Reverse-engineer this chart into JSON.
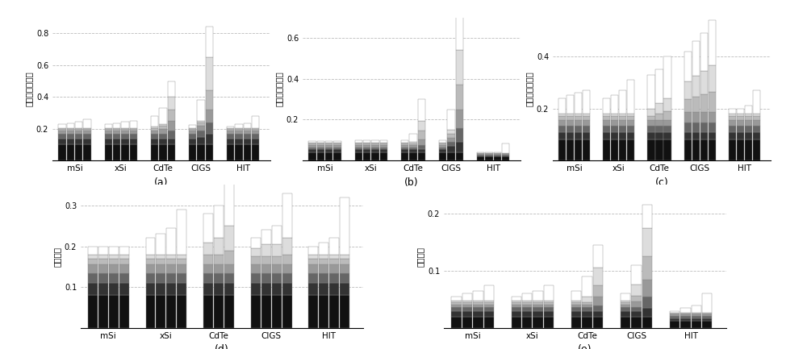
{
  "titles": {
    "a": "最大功率点电流",
    "b": "最大功率点电压",
    "c": "最大功率点功率",
    "d": "短路电流",
    "e": "开路电压"
  },
  "xlabels": [
    "mSi",
    "xSi",
    "CdTe",
    "CIGS",
    "HIT"
  ],
  "colors": [
    "#111111",
    "#333333",
    "#666666",
    "#999999",
    "#bbbbbb",
    "#dddddd",
    "#ffffff"
  ],
  "chart_a": {
    "ylim": [
      0,
      0.9
    ],
    "yticks": [
      0.2,
      0.4,
      0.6,
      0.8
    ],
    "data": [
      [
        0.21,
        0.22,
        0.23,
        0.25
      ],
      [
        0.21,
        0.22,
        0.23,
        0.24
      ],
      [
        0.27,
        0.33,
        0.53
      ],
      [
        0.26,
        0.39,
        0.84
      ],
      [
        0.2,
        0.21,
        0.22,
        0.28
      ]
    ],
    "segment_fracs": [
      [
        [
          0.1,
          0.04,
          0.03,
          0.02,
          0.01,
          0.005,
          0.025
        ],
        [
          0.1,
          0.04,
          0.03,
          0.02,
          0.01,
          0.005,
          0.03
        ],
        [
          0.1,
          0.04,
          0.03,
          0.02,
          0.01,
          0.005,
          0.04
        ],
        [
          0.1,
          0.04,
          0.03,
          0.02,
          0.01,
          0.005,
          0.055
        ]
      ],
      [
        [
          0.1,
          0.04,
          0.03,
          0.02,
          0.01,
          0.005,
          0.025
        ],
        [
          0.1,
          0.04,
          0.03,
          0.02,
          0.01,
          0.005,
          0.03
        ],
        [
          0.1,
          0.04,
          0.03,
          0.02,
          0.01,
          0.005,
          0.04
        ],
        [
          0.1,
          0.04,
          0.03,
          0.02,
          0.01,
          0.005,
          0.045
        ]
      ],
      [
        [
          0.1,
          0.04,
          0.03,
          0.02,
          0.015,
          0.01,
          0.065
        ],
        [
          0.1,
          0.04,
          0.03,
          0.03,
          0.02,
          0.01,
          0.1
        ],
        [
          0.1,
          0.04,
          0.05,
          0.06,
          0.07,
          0.08,
          0.1
        ]
      ],
      [
        [
          0.1,
          0.04,
          0.03,
          0.02,
          0.01,
          0.005,
          0.02
        ],
        [
          0.1,
          0.05,
          0.04,
          0.03,
          0.02,
          0.01,
          0.13
        ],
        [
          0.1,
          0.07,
          0.07,
          0.08,
          0.12,
          0.21,
          0.19
        ]
      ],
      [
        [
          0.1,
          0.04,
          0.03,
          0.02,
          0.01,
          0.005,
          0.01
        ],
        [
          0.1,
          0.04,
          0.03,
          0.02,
          0.01,
          0.005,
          0.025
        ],
        [
          0.1,
          0.04,
          0.03,
          0.02,
          0.01,
          0.005,
          0.03
        ],
        [
          0.1,
          0.04,
          0.03,
          0.02,
          0.01,
          0.005,
          0.075
        ]
      ]
    ]
  },
  "chart_b": {
    "ylim": [
      0,
      0.7
    ],
    "yticks": [
      0.2,
      0.4,
      0.6
    ],
    "data": [
      [
        0.095,
        0.095,
        0.095,
        0.095
      ],
      [
        0.1,
        0.1,
        0.1,
        0.1
      ],
      [
        0.1,
        0.13,
        0.28
      ],
      [
        0.1,
        0.25,
        0.65
      ],
      [
        0.04,
        0.04,
        0.04,
        0.09
      ]
    ],
    "segment_fracs": [
      [
        [
          0.04,
          0.015,
          0.01,
          0.01,
          0.007,
          0.005,
          0.008
        ],
        [
          0.04,
          0.015,
          0.01,
          0.01,
          0.007,
          0.005,
          0.008
        ],
        [
          0.04,
          0.015,
          0.01,
          0.01,
          0.007,
          0.005,
          0.008
        ],
        [
          0.04,
          0.015,
          0.01,
          0.01,
          0.007,
          0.005,
          0.008
        ]
      ],
      [
        [
          0.04,
          0.015,
          0.01,
          0.01,
          0.007,
          0.005,
          0.013
        ],
        [
          0.04,
          0.015,
          0.01,
          0.01,
          0.007,
          0.005,
          0.013
        ],
        [
          0.04,
          0.015,
          0.01,
          0.01,
          0.007,
          0.005,
          0.013
        ],
        [
          0.04,
          0.015,
          0.01,
          0.01,
          0.007,
          0.005,
          0.013
        ]
      ],
      [
        [
          0.04,
          0.015,
          0.01,
          0.01,
          0.007,
          0.005,
          0.013
        ],
        [
          0.04,
          0.015,
          0.01,
          0.01,
          0.007,
          0.01,
          0.04
        ],
        [
          0.04,
          0.015,
          0.02,
          0.03,
          0.04,
          0.05,
          0.105
        ]
      ],
      [
        [
          0.04,
          0.015,
          0.01,
          0.01,
          0.007,
          0.005,
          0.013
        ],
        [
          0.04,
          0.03,
          0.02,
          0.02,
          0.02,
          0.02,
          0.1
        ],
        [
          0.04,
          0.05,
          0.07,
          0.09,
          0.12,
          0.17,
          0.18
        ]
      ],
      [
        [
          0.02,
          0.005,
          0.004,
          0.003,
          0.003,
          0.002,
          0.003
        ],
        [
          0.02,
          0.005,
          0.004,
          0.003,
          0.003,
          0.002,
          0.003
        ],
        [
          0.02,
          0.005,
          0.004,
          0.003,
          0.003,
          0.002,
          0.003
        ],
        [
          0.02,
          0.005,
          0.004,
          0.003,
          0.003,
          0.002,
          0.048
        ]
      ]
    ]
  },
  "chart_c": {
    "ylim": [
      0,
      0.55
    ],
    "yticks": [
      0.2,
      0.4
    ],
    "data": [
      [
        0.21,
        0.22,
        0.23,
        0.24
      ],
      [
        0.21,
        0.22,
        0.24,
        0.29
      ],
      [
        0.29,
        0.31,
        0.35
      ],
      [
        0.42,
        0.46,
        0.49,
        0.54
      ],
      [
        0.2,
        0.2,
        0.21,
        0.26
      ]
    ],
    "segment_fracs": [
      [
        [
          0.08,
          0.03,
          0.025,
          0.02,
          0.015,
          0.01,
          0.06
        ],
        [
          0.08,
          0.03,
          0.025,
          0.02,
          0.015,
          0.01,
          0.07
        ],
        [
          0.08,
          0.03,
          0.025,
          0.02,
          0.015,
          0.01,
          0.08
        ],
        [
          0.08,
          0.03,
          0.025,
          0.02,
          0.015,
          0.01,
          0.09
        ]
      ],
      [
        [
          0.08,
          0.03,
          0.025,
          0.02,
          0.015,
          0.01,
          0.06
        ],
        [
          0.08,
          0.03,
          0.025,
          0.02,
          0.015,
          0.01,
          0.07
        ],
        [
          0.08,
          0.03,
          0.025,
          0.02,
          0.015,
          0.01,
          0.09
        ],
        [
          0.08,
          0.03,
          0.025,
          0.02,
          0.015,
          0.01,
          0.13
        ]
      ],
      [
        [
          0.08,
          0.03,
          0.025,
          0.02,
          0.015,
          0.03,
          0.13
        ],
        [
          0.08,
          0.03,
          0.025,
          0.02,
          0.025,
          0.04,
          0.13
        ],
        [
          0.08,
          0.03,
          0.025,
          0.02,
          0.035,
          0.05,
          0.16
        ]
      ],
      [
        [
          0.08,
          0.03,
          0.035,
          0.04,
          0.05,
          0.07,
          0.115
        ],
        [
          0.08,
          0.03,
          0.035,
          0.04,
          0.06,
          0.08,
          0.135
        ],
        [
          0.08,
          0.03,
          0.035,
          0.04,
          0.07,
          0.09,
          0.145
        ],
        [
          0.08,
          0.03,
          0.035,
          0.04,
          0.08,
          0.1,
          0.175
        ]
      ],
      [
        [
          0.08,
          0.03,
          0.025,
          0.02,
          0.015,
          0.01,
          0.02
        ],
        [
          0.08,
          0.03,
          0.025,
          0.02,
          0.015,
          0.01,
          0.02
        ],
        [
          0.08,
          0.03,
          0.025,
          0.02,
          0.015,
          0.01,
          0.03
        ],
        [
          0.08,
          0.03,
          0.025,
          0.02,
          0.015,
          0.01,
          0.09
        ]
      ]
    ]
  },
  "chart_d": {
    "ylim": [
      0,
      0.35
    ],
    "yticks": [
      0.1,
      0.2,
      0.3
    ],
    "data": [
      [
        0.19,
        0.2,
        0.2,
        0.2
      ],
      [
        0.2,
        0.21,
        0.22,
        0.26
      ],
      [
        0.25,
        0.27,
        0.32
      ],
      [
        0.22,
        0.24,
        0.25,
        0.31
      ],
      [
        0.19,
        0.2,
        0.21,
        0.3
      ]
    ],
    "segment_fracs": [
      [
        [
          0.08,
          0.03,
          0.025,
          0.02,
          0.015,
          0.01,
          0.02
        ],
        [
          0.08,
          0.03,
          0.025,
          0.02,
          0.015,
          0.01,
          0.02
        ],
        [
          0.08,
          0.03,
          0.025,
          0.02,
          0.015,
          0.01,
          0.02
        ],
        [
          0.08,
          0.03,
          0.025,
          0.02,
          0.015,
          0.01,
          0.02
        ]
      ],
      [
        [
          0.08,
          0.03,
          0.025,
          0.02,
          0.015,
          0.01,
          0.04
        ],
        [
          0.08,
          0.03,
          0.025,
          0.02,
          0.015,
          0.01,
          0.05
        ],
        [
          0.08,
          0.03,
          0.025,
          0.02,
          0.015,
          0.01,
          0.065
        ],
        [
          0.08,
          0.03,
          0.025,
          0.02,
          0.015,
          0.01,
          0.11
        ]
      ],
      [
        [
          0.08,
          0.03,
          0.025,
          0.02,
          0.025,
          0.03,
          0.07
        ],
        [
          0.08,
          0.03,
          0.025,
          0.02,
          0.025,
          0.04,
          0.08
        ],
        [
          0.08,
          0.03,
          0.025,
          0.02,
          0.035,
          0.06,
          0.11
        ]
      ],
      [
        [
          0.08,
          0.03,
          0.025,
          0.02,
          0.02,
          0.02,
          0.025
        ],
        [
          0.08,
          0.03,
          0.025,
          0.02,
          0.02,
          0.03,
          0.035
        ],
        [
          0.08,
          0.03,
          0.025,
          0.02,
          0.02,
          0.03,
          0.045
        ],
        [
          0.08,
          0.03,
          0.025,
          0.02,
          0.025,
          0.04,
          0.11
        ]
      ],
      [
        [
          0.08,
          0.03,
          0.025,
          0.02,
          0.015,
          0.01,
          0.02
        ],
        [
          0.08,
          0.03,
          0.025,
          0.02,
          0.015,
          0.01,
          0.03
        ],
        [
          0.08,
          0.03,
          0.025,
          0.02,
          0.015,
          0.01,
          0.04
        ],
        [
          0.08,
          0.03,
          0.025,
          0.02,
          0.015,
          0.01,
          0.14
        ]
      ]
    ]
  },
  "chart_e": {
    "ylim": [
      0,
      0.25
    ],
    "yticks": [
      0.1,
      0.2
    ],
    "data": [
      [
        0.055,
        0.06,
        0.065,
        0.075
      ],
      [
        0.055,
        0.06,
        0.065,
        0.075
      ],
      [
        0.065,
        0.09,
        0.145
      ],
      [
        0.06,
        0.11,
        0.215
      ],
      [
        0.03,
        0.035,
        0.04,
        0.06
      ]
    ],
    "segment_fracs": [
      [
        [
          0.02,
          0.01,
          0.006,
          0.005,
          0.004,
          0.003,
          0.007
        ],
        [
          0.02,
          0.01,
          0.006,
          0.005,
          0.004,
          0.003,
          0.012
        ],
        [
          0.02,
          0.01,
          0.006,
          0.005,
          0.004,
          0.003,
          0.017
        ],
        [
          0.02,
          0.01,
          0.006,
          0.005,
          0.004,
          0.003,
          0.027
        ]
      ],
      [
        [
          0.02,
          0.01,
          0.006,
          0.005,
          0.004,
          0.003,
          0.007
        ],
        [
          0.02,
          0.01,
          0.006,
          0.005,
          0.004,
          0.003,
          0.012
        ],
        [
          0.02,
          0.01,
          0.006,
          0.005,
          0.004,
          0.003,
          0.017
        ],
        [
          0.02,
          0.01,
          0.006,
          0.005,
          0.004,
          0.003,
          0.027
        ]
      ],
      [
        [
          0.02,
          0.01,
          0.006,
          0.005,
          0.004,
          0.003,
          0.017
        ],
        [
          0.02,
          0.01,
          0.006,
          0.005,
          0.004,
          0.01,
          0.035
        ],
        [
          0.02,
          0.01,
          0.01,
          0.015,
          0.02,
          0.03,
          0.04
        ]
      ],
      [
        [
          0.02,
          0.01,
          0.006,
          0.005,
          0.004,
          0.003,
          0.012
        ],
        [
          0.02,
          0.01,
          0.006,
          0.01,
          0.01,
          0.02,
          0.034
        ],
        [
          0.02,
          0.015,
          0.02,
          0.03,
          0.04,
          0.05,
          0.04
        ]
      ],
      [
        [
          0.012,
          0.005,
          0.004,
          0.003,
          0.002,
          0.001,
          0.003
        ],
        [
          0.012,
          0.005,
          0.004,
          0.003,
          0.002,
          0.001,
          0.008
        ],
        [
          0.012,
          0.005,
          0.004,
          0.003,
          0.002,
          0.001,
          0.013
        ],
        [
          0.012,
          0.005,
          0.004,
          0.003,
          0.002,
          0.001,
          0.033
        ]
      ]
    ]
  }
}
